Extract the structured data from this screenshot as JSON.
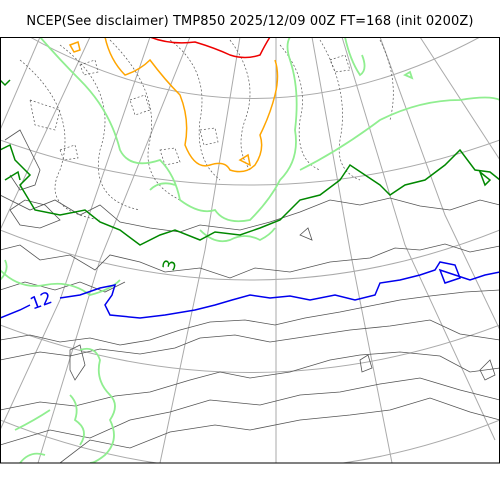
{
  "title": "NCEP(See disclaimer) TMP850 2025/12/09 00Z FT=168 (init 0200Z)",
  "contour_labels": [
    {
      "text": "12",
      "color": "#0000ee"
    },
    {
      "text": "3",
      "color": "#008800"
    }
  ],
  "colors": {
    "coast": "#555555",
    "graticule": "#aaaaaa",
    "isotherm_12": "#0000ee",
    "isotherm_3": "#008800",
    "isotherm_light_green": "#90ee90",
    "isotherm_orange": "#ffa500",
    "isotherm_red": "#ee0000",
    "dotted": "#555555"
  }
}
